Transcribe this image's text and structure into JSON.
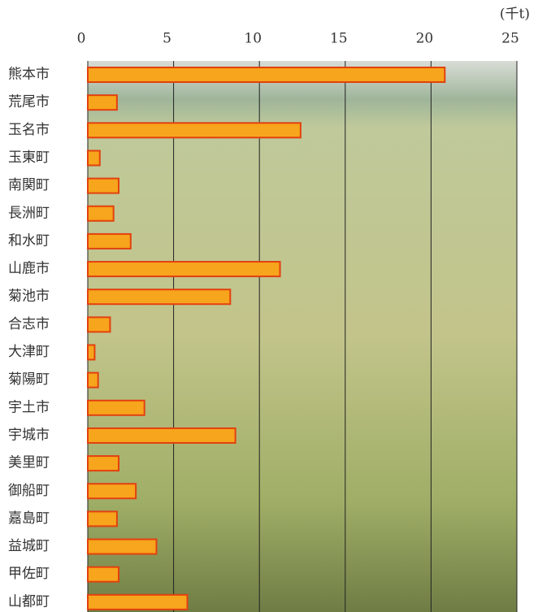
{
  "chart_data": {
    "type": "bar",
    "orientation": "horizontal",
    "unit": "(千t)",
    "categories": [
      "熊本市",
      "荒尾市",
      "玉名市",
      "玉東町",
      "南関町",
      "長洲町",
      "和水町",
      "山鹿市",
      "菊池市",
      "合志市",
      "大津町",
      "菊陽町",
      "宇土市",
      "宇城市",
      "美里町",
      "御船町",
      "嘉島町",
      "益城町",
      "甲佐町",
      "山都町"
    ],
    "values": [
      20.8,
      1.7,
      12.4,
      0.7,
      1.8,
      1.5,
      2.5,
      11.2,
      8.3,
      1.3,
      0.4,
      0.6,
      3.3,
      8.6,
      1.8,
      2.8,
      1.7,
      4.0,
      1.8,
      5.8
    ],
    "color": "#f7a51c",
    "edge_color": "#e2410f",
    "xlim": [
      0,
      25
    ],
    "xticks": [
      0,
      5,
      10,
      15,
      20,
      25
    ],
    "grid": true
  }
}
